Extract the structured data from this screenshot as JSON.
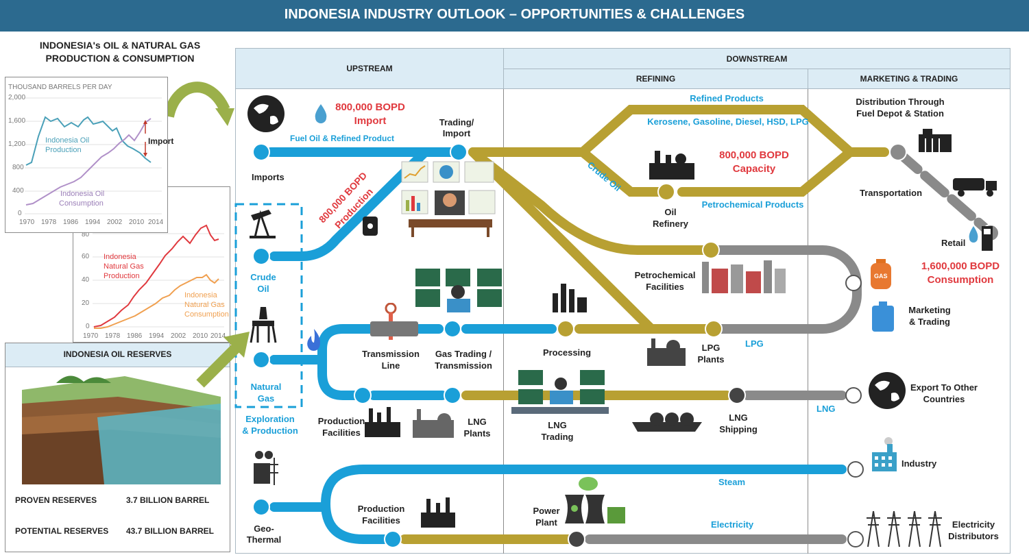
{
  "banner": {
    "title": "INDONESIA INDUSTRY OUTLOOK – OPPORTUNITIES & CHALLENGES"
  },
  "left_panel": {
    "title_line1": "INDONESIA's OIL & NATURAL GAS",
    "title_line2": "PRODUCTION & CONSUMPTION",
    "oil_chart": {
      "ylabel": "THOUSAND BARRELS PER DAY",
      "yticks": [
        "0",
        "400",
        "800",
        "1,200",
        "1,600",
        "2,000"
      ],
      "xticks": [
        "1970",
        "1978",
        "1986",
        "1994",
        "2002",
        "2010",
        "2014"
      ],
      "production_label": [
        "Indonesia Oil",
        "Production"
      ],
      "consumption_label": [
        "Indonesia Oil",
        "Consumption"
      ],
      "annotation": "Import"
    },
    "gas_chart": {
      "yticks": [
        "0",
        "20",
        "40",
        "60",
        "80"
      ],
      "xticks": [
        "1970",
        "1978",
        "1986",
        "1994",
        "2002",
        "2010",
        "2014"
      ],
      "production_label": [
        "Indonesia",
        "Natural Gas",
        "Production"
      ],
      "consumption_label": [
        "Indonesia",
        "Natural Gas",
        "Consumption"
      ]
    },
    "reserves": {
      "title": "INDONESIA OIL RESERVES",
      "proven_label": "PROVEN RESERVES",
      "proven_value": "3.7 BILLION BARREL",
      "potential_label": "POTENTIAL RESERVES",
      "potential_value": "43.7 BILLION BARREL"
    }
  },
  "headers": {
    "upstream": "UPSTREAM",
    "downstream": "DOWNSTREAM",
    "refining": "REFINING",
    "marketing": "MARKETING & TRADING"
  },
  "upstream": {
    "import_volume": "800,000 BOPD",
    "import_word": "Import",
    "fuel_oil": "Fuel Oil & Refined Product",
    "trading_import": [
      "Trading/",
      "Import"
    ],
    "imports": "Imports",
    "production_rotated": [
      "800,000 BOPD",
      "Production"
    ],
    "crude_oil": [
      "Crude",
      "Oil"
    ],
    "natural_gas": [
      "Natural",
      "Gas"
    ],
    "exploration": [
      "Exploration",
      "& Production"
    ],
    "transmission_line": [
      "Transmission",
      "Line"
    ],
    "gas_trading": [
      "Gas Trading /",
      "Transmission"
    ],
    "production_facilities": [
      "Production",
      "Facilities"
    ],
    "lng_plants": [
      "LNG",
      "Plants"
    ],
    "geo_thermal": [
      "Geo-",
      "Thermal"
    ],
    "production_facilities_2": [
      "Production",
      "Facilities"
    ]
  },
  "refining": {
    "refined_products": "Refined Products",
    "products_list": "Kerosene, Gasoline, Diesel, HSD, LPG",
    "crude_oil_rotated": "Crude Oil",
    "capacity_volume": "800,000 BOPD",
    "capacity_word": "Capacity",
    "oil_refinery": [
      "Oil",
      "Refinery"
    ],
    "petrochemical_products": "Petrochemical Products",
    "petrochemical_facilities": [
      "Petrochemical",
      "Facilities"
    ],
    "lpg_plants": [
      "LPG",
      "Plants"
    ],
    "lpg": "LPG",
    "processing": "Processing",
    "lng_trading": [
      "LNG",
      "Trading"
    ],
    "lng_shipping": [
      "LNG",
      "Shipping"
    ],
    "power_plant": [
      "Power",
      "Plant"
    ],
    "steam": "Steam",
    "electricity": "Electricity"
  },
  "marketing": {
    "distribution": [
      "Distribution Through",
      "Fuel Depot & Station"
    ],
    "transportation": "Transportation",
    "retail": "Retail",
    "consumption_volume": "1,600,000 BOPD",
    "consumption_word": "Consumption",
    "gas_cylinder_label": "GAS",
    "marketing_trading": [
      "Marketing",
      "& Trading"
    ],
    "export": [
      "Export To Other",
      "Countries"
    ],
    "lng": "LNG",
    "industry": "Industry",
    "electricity_distributors": [
      "Electricity",
      "Distributors"
    ]
  },
  "colors": {
    "banner": "#2c6a8f",
    "pipe_blue": "#1a9fd8",
    "pipe_gold": "#b8a032",
    "pipe_gray": "#8a8a8a",
    "accent_red": "#e0393e",
    "chart_green": "#9bb04a"
  }
}
